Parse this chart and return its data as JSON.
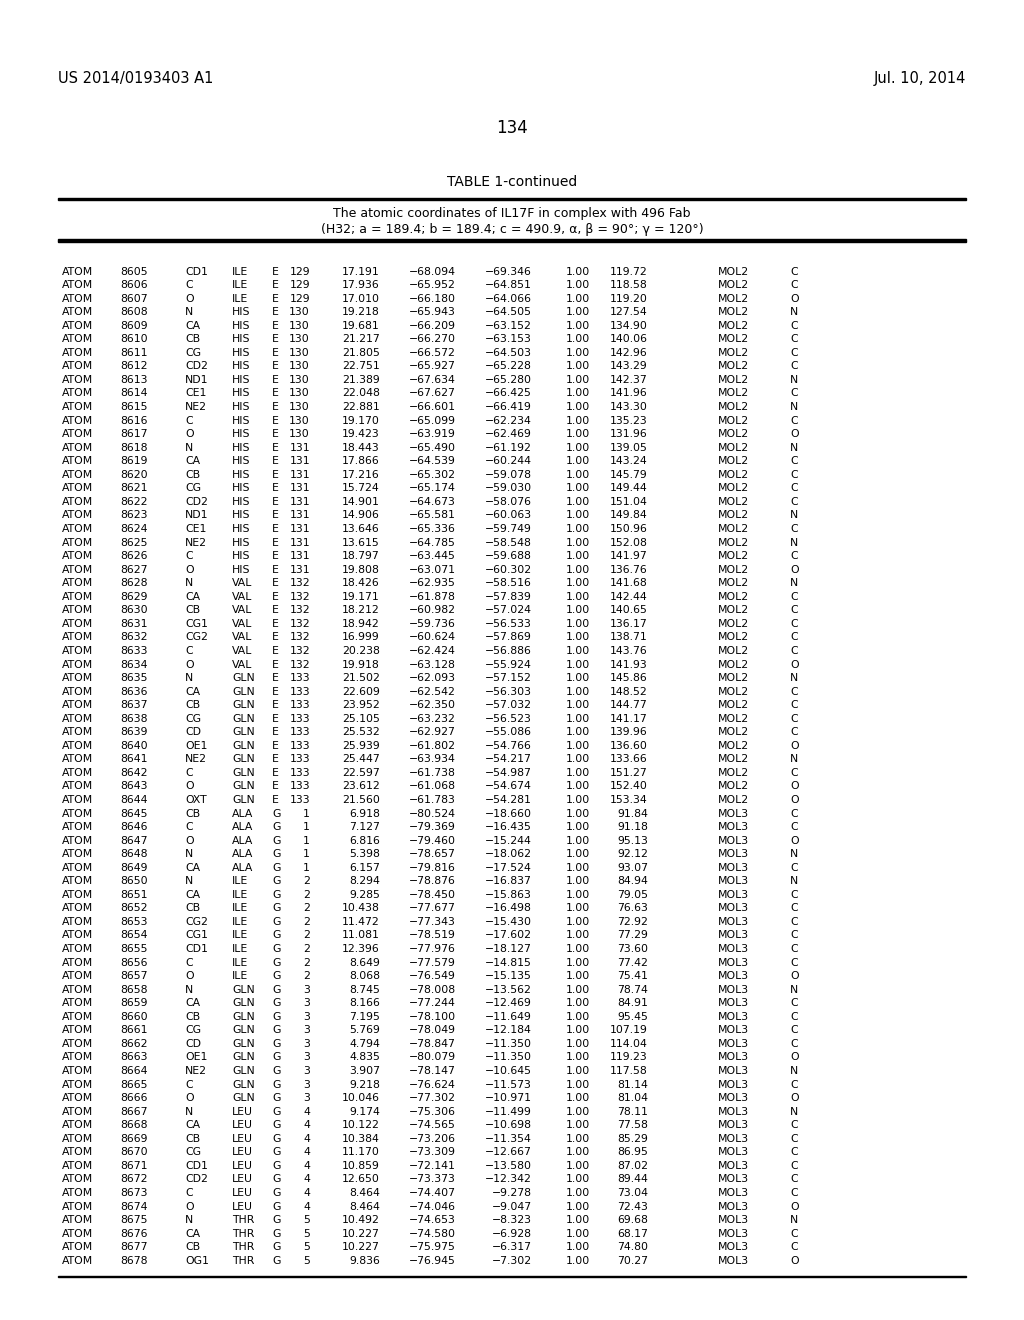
{
  "header_left": "US 2014/0193403 A1",
  "header_right": "Jul. 10, 2014",
  "page_number": "134",
  "table_title": "TABLE 1-continued",
  "table_subtitle1": "The atomic coordinates of IL17F in complex with 496 Fab",
  "table_subtitle2": "(H32; a = 189.4; b = 189.4; c = 490.9, α, β = 90°; γ = 120°)",
  "rows": [
    [
      "ATOM",
      "8605",
      "CD1",
      "ILE",
      "E",
      "129",
      "17.191",
      "−68.094",
      "−69.346",
      "1.00",
      "119.72",
      "MOL2",
      "C"
    ],
    [
      "ATOM",
      "8606",
      "C",
      "ILE",
      "E",
      "129",
      "17.936",
      "−65.952",
      "−64.851",
      "1.00",
      "118.58",
      "MOL2",
      "C"
    ],
    [
      "ATOM",
      "8607",
      "O",
      "ILE",
      "E",
      "129",
      "17.010",
      "−66.180",
      "−64.066",
      "1.00",
      "119.20",
      "MOL2",
      "O"
    ],
    [
      "ATOM",
      "8608",
      "N",
      "HIS",
      "E",
      "130",
      "19.218",
      "−65.943",
      "−64.505",
      "1.00",
      "127.54",
      "MOL2",
      "N"
    ],
    [
      "ATOM",
      "8609",
      "CA",
      "HIS",
      "E",
      "130",
      "19.681",
      "−66.209",
      "−63.152",
      "1.00",
      "134.90",
      "MOL2",
      "C"
    ],
    [
      "ATOM",
      "8610",
      "CB",
      "HIS",
      "E",
      "130",
      "21.217",
      "−66.270",
      "−63.153",
      "1.00",
      "140.06",
      "MOL2",
      "C"
    ],
    [
      "ATOM",
      "8611",
      "CG",
      "HIS",
      "E",
      "130",
      "21.805",
      "−66.572",
      "−64.503",
      "1.00",
      "142.96",
      "MOL2",
      "C"
    ],
    [
      "ATOM",
      "8612",
      "CD2",
      "HIS",
      "E",
      "130",
      "22.751",
      "−65.927",
      "−65.228",
      "1.00",
      "143.29",
      "MOL2",
      "C"
    ],
    [
      "ATOM",
      "8613",
      "ND1",
      "HIS",
      "E",
      "130",
      "21.389",
      "−67.634",
      "−65.280",
      "1.00",
      "142.37",
      "MOL2",
      "N"
    ],
    [
      "ATOM",
      "8614",
      "CE1",
      "HIS",
      "E",
      "130",
      "22.048",
      "−67.627",
      "−66.425",
      "1.00",
      "141.96",
      "MOL2",
      "C"
    ],
    [
      "ATOM",
      "8615",
      "NE2",
      "HIS",
      "E",
      "130",
      "22.881",
      "−66.601",
      "−66.419",
      "1.00",
      "143.30",
      "MOL2",
      "N"
    ],
    [
      "ATOM",
      "8616",
      "C",
      "HIS",
      "E",
      "130",
      "19.170",
      "−65.099",
      "−62.234",
      "1.00",
      "135.23",
      "MOL2",
      "C"
    ],
    [
      "ATOM",
      "8617",
      "O",
      "HIS",
      "E",
      "130",
      "19.423",
      "−63.919",
      "−62.469",
      "1.00",
      "131.96",
      "MOL2",
      "O"
    ],
    [
      "ATOM",
      "8618",
      "N",
      "HIS",
      "E",
      "131",
      "18.443",
      "−65.490",
      "−61.192",
      "1.00",
      "139.05",
      "MOL2",
      "N"
    ],
    [
      "ATOM",
      "8619",
      "CA",
      "HIS",
      "E",
      "131",
      "17.866",
      "−64.539",
      "−60.244",
      "1.00",
      "143.24",
      "MOL2",
      "C"
    ],
    [
      "ATOM",
      "8620",
      "CB",
      "HIS",
      "E",
      "131",
      "17.216",
      "−65.302",
      "−59.078",
      "1.00",
      "145.79",
      "MOL2",
      "C"
    ],
    [
      "ATOM",
      "8621",
      "CG",
      "HIS",
      "E",
      "131",
      "15.724",
      "−65.174",
      "−59.030",
      "1.00",
      "149.44",
      "MOL2",
      "C"
    ],
    [
      "ATOM",
      "8622",
      "CD2",
      "HIS",
      "E",
      "131",
      "14.901",
      "−64.673",
      "−58.076",
      "1.00",
      "151.04",
      "MOL2",
      "C"
    ],
    [
      "ATOM",
      "8623",
      "ND1",
      "HIS",
      "E",
      "131",
      "14.906",
      "−65.581",
      "−60.063",
      "1.00",
      "149.84",
      "MOL2",
      "N"
    ],
    [
      "ATOM",
      "8624",
      "CE1",
      "HIS",
      "E",
      "131",
      "13.646",
      "−65.336",
      "−59.749",
      "1.00",
      "150.96",
      "MOL2",
      "C"
    ],
    [
      "ATOM",
      "8625",
      "NE2",
      "HIS",
      "E",
      "131",
      "13.615",
      "−64.785",
      "−58.548",
      "1.00",
      "152.08",
      "MOL2",
      "N"
    ],
    [
      "ATOM",
      "8626",
      "C",
      "HIS",
      "E",
      "131",
      "18.797",
      "−63.445",
      "−59.688",
      "1.00",
      "141.97",
      "MOL2",
      "C"
    ],
    [
      "ATOM",
      "8627",
      "O",
      "HIS",
      "E",
      "131",
      "19.808",
      "−63.071",
      "−60.302",
      "1.00",
      "136.76",
      "MOL2",
      "O"
    ],
    [
      "ATOM",
      "8628",
      "N",
      "VAL",
      "E",
      "132",
      "18.426",
      "−62.935",
      "−58.516",
      "1.00",
      "141.68",
      "MOL2",
      "N"
    ],
    [
      "ATOM",
      "8629",
      "CA",
      "VAL",
      "E",
      "132",
      "19.171",
      "−61.878",
      "−57.839",
      "1.00",
      "142.44",
      "MOL2",
      "C"
    ],
    [
      "ATOM",
      "8630",
      "CB",
      "VAL",
      "E",
      "132",
      "18.212",
      "−60.982",
      "−57.024",
      "1.00",
      "140.65",
      "MOL2",
      "C"
    ],
    [
      "ATOM",
      "8631",
      "CG1",
      "VAL",
      "E",
      "132",
      "18.942",
      "−59.736",
      "−56.533",
      "1.00",
      "136.17",
      "MOL2",
      "C"
    ],
    [
      "ATOM",
      "8632",
      "CG2",
      "VAL",
      "E",
      "132",
      "16.999",
      "−60.624",
      "−57.869",
      "1.00",
      "138.71",
      "MOL2",
      "C"
    ],
    [
      "ATOM",
      "8633",
      "C",
      "VAL",
      "E",
      "132",
      "20.238",
      "−62.424",
      "−56.886",
      "1.00",
      "143.76",
      "MOL2",
      "C"
    ],
    [
      "ATOM",
      "8634",
      "O",
      "VAL",
      "E",
      "132",
      "19.918",
      "−63.128",
      "−55.924",
      "1.00",
      "141.93",
      "MOL2",
      "O"
    ],
    [
      "ATOM",
      "8635",
      "N",
      "GLN",
      "E",
      "133",
      "21.502",
      "−62.093",
      "−57.152",
      "1.00",
      "145.86",
      "MOL2",
      "N"
    ],
    [
      "ATOM",
      "8636",
      "CA",
      "GLN",
      "E",
      "133",
      "22.609",
      "−62.542",
      "−56.303",
      "1.00",
      "148.52",
      "MOL2",
      "C"
    ],
    [
      "ATOM",
      "8637",
      "CB",
      "GLN",
      "E",
      "133",
      "23.952",
      "−62.350",
      "−57.032",
      "1.00",
      "144.77",
      "MOL2",
      "C"
    ],
    [
      "ATOM",
      "8638",
      "CG",
      "GLN",
      "E",
      "133",
      "25.105",
      "−63.232",
      "−56.523",
      "1.00",
      "141.17",
      "MOL2",
      "C"
    ],
    [
      "ATOM",
      "8639",
      "CD",
      "GLN",
      "E",
      "133",
      "25.532",
      "−62.927",
      "−55.086",
      "1.00",
      "139.96",
      "MOL2",
      "C"
    ],
    [
      "ATOM",
      "8640",
      "OE1",
      "GLN",
      "E",
      "133",
      "25.939",
      "−61.802",
      "−54.766",
      "1.00",
      "136.60",
      "MOL2",
      "O"
    ],
    [
      "ATOM",
      "8641",
      "NE2",
      "GLN",
      "E",
      "133",
      "25.447",
      "−63.934",
      "−54.217",
      "1.00",
      "133.66",
      "MOL2",
      "N"
    ],
    [
      "ATOM",
      "8642",
      "C",
      "GLN",
      "E",
      "133",
      "22.597",
      "−61.738",
      "−54.987",
      "1.00",
      "151.27",
      "MOL2",
      "C"
    ],
    [
      "ATOM",
      "8643",
      "O",
      "GLN",
      "E",
      "133",
      "23.612",
      "−61.068",
      "−54.674",
      "1.00",
      "152.40",
      "MOL2",
      "O"
    ],
    [
      "ATOM",
      "8644",
      "OXT",
      "GLN",
      "E",
      "133",
      "21.560",
      "−61.783",
      "−54.281",
      "1.00",
      "153.34",
      "MOL2",
      "O"
    ],
    [
      "ATOM",
      "8645",
      "CB",
      "ALA",
      "G",
      "1",
      "6.918",
      "−80.524",
      "−18.660",
      "1.00",
      "91.84",
      "MOL3",
      "C"
    ],
    [
      "ATOM",
      "8646",
      "C",
      "ALA",
      "G",
      "1",
      "7.127",
      "−79.369",
      "−16.435",
      "1.00",
      "91.18",
      "MOL3",
      "C"
    ],
    [
      "ATOM",
      "8647",
      "O",
      "ALA",
      "G",
      "1",
      "6.816",
      "−79.460",
      "−15.244",
      "1.00",
      "95.13",
      "MOL3",
      "O"
    ],
    [
      "ATOM",
      "8648",
      "N",
      "ALA",
      "G",
      "1",
      "5.398",
      "−78.657",
      "−18.062",
      "1.00",
      "92.12",
      "MOL3",
      "N"
    ],
    [
      "ATOM",
      "8649",
      "CA",
      "ALA",
      "G",
      "1",
      "6.157",
      "−79.816",
      "−17.524",
      "1.00",
      "93.07",
      "MOL3",
      "C"
    ],
    [
      "ATOM",
      "8650",
      "N",
      "ILE",
      "G",
      "2",
      "8.294",
      "−78.876",
      "−16.837",
      "1.00",
      "84.94",
      "MOL3",
      "N"
    ],
    [
      "ATOM",
      "8651",
      "CA",
      "ILE",
      "G",
      "2",
      "9.285",
      "−78.450",
      "−15.863",
      "1.00",
      "79.05",
      "MOL3",
      "C"
    ],
    [
      "ATOM",
      "8652",
      "CB",
      "ILE",
      "G",
      "2",
      "10.438",
      "−77.677",
      "−16.498",
      "1.00",
      "76.63",
      "MOL3",
      "C"
    ],
    [
      "ATOM",
      "8653",
      "CG2",
      "ILE",
      "G",
      "2",
      "11.472",
      "−77.343",
      "−15.430",
      "1.00",
      "72.92",
      "MOL3",
      "C"
    ],
    [
      "ATOM",
      "8654",
      "CG1",
      "ILE",
      "G",
      "2",
      "11.081",
      "−78.519",
      "−17.602",
      "1.00",
      "77.29",
      "MOL3",
      "C"
    ],
    [
      "ATOM",
      "8655",
      "CD1",
      "ILE",
      "G",
      "2",
      "12.396",
      "−77.976",
      "−18.127",
      "1.00",
      "73.60",
      "MOL3",
      "C"
    ],
    [
      "ATOM",
      "8656",
      "C",
      "ILE",
      "G",
      "2",
      "8.649",
      "−77.579",
      "−14.815",
      "1.00",
      "77.42",
      "MOL3",
      "C"
    ],
    [
      "ATOM",
      "8657",
      "O",
      "ILE",
      "G",
      "2",
      "8.068",
      "−76.549",
      "−15.135",
      "1.00",
      "75.41",
      "MOL3",
      "O"
    ],
    [
      "ATOM",
      "8658",
      "N",
      "GLN",
      "G",
      "3",
      "8.745",
      "−78.008",
      "−13.562",
      "1.00",
      "78.74",
      "MOL3",
      "N"
    ],
    [
      "ATOM",
      "8659",
      "CA",
      "GLN",
      "G",
      "3",
      "8.166",
      "−77.244",
      "−12.469",
      "1.00",
      "84.91",
      "MOL3",
      "C"
    ],
    [
      "ATOM",
      "8660",
      "CB",
      "GLN",
      "G",
      "3",
      "7.195",
      "−78.100",
      "−11.649",
      "1.00",
      "95.45",
      "MOL3",
      "C"
    ],
    [
      "ATOM",
      "8661",
      "CG",
      "GLN",
      "G",
      "3",
      "5.769",
      "−78.049",
      "−12.184",
      "1.00",
      "107.19",
      "MOL3",
      "C"
    ],
    [
      "ATOM",
      "8662",
      "CD",
      "GLN",
      "G",
      "3",
      "4.794",
      "−78.847",
      "−11.350",
      "1.00",
      "114.04",
      "MOL3",
      "C"
    ],
    [
      "ATOM",
      "8663",
      "OE1",
      "GLN",
      "G",
      "3",
      "4.835",
      "−80.079",
      "−11.350",
      "1.00",
      "119.23",
      "MOL3",
      "O"
    ],
    [
      "ATOM",
      "8664",
      "NE2",
      "GLN",
      "G",
      "3",
      "3.907",
      "−78.147",
      "−10.645",
      "1.00",
      "117.58",
      "MOL3",
      "N"
    ],
    [
      "ATOM",
      "8665",
      "C",
      "GLN",
      "G",
      "3",
      "9.218",
      "−76.624",
      "−11.573",
      "1.00",
      "81.14",
      "MOL3",
      "C"
    ],
    [
      "ATOM",
      "8666",
      "O",
      "GLN",
      "G",
      "3",
      "10.046",
      "−77.302",
      "−10.971",
      "1.00",
      "81.04",
      "MOL3",
      "O"
    ],
    [
      "ATOM",
      "8667",
      "N",
      "LEU",
      "G",
      "4",
      "9.174",
      "−75.306",
      "−11.499",
      "1.00",
      "78.11",
      "MOL3",
      "N"
    ],
    [
      "ATOM",
      "8668",
      "CA",
      "LEU",
      "G",
      "4",
      "10.122",
      "−74.565",
      "−10.698",
      "1.00",
      "77.58",
      "MOL3",
      "C"
    ],
    [
      "ATOM",
      "8669",
      "CB",
      "LEU",
      "G",
      "4",
      "10.384",
      "−73.206",
      "−11.354",
      "1.00",
      "85.29",
      "MOL3",
      "C"
    ],
    [
      "ATOM",
      "8670",
      "CG",
      "LEU",
      "G",
      "4",
      "11.170",
      "−73.309",
      "−12.667",
      "1.00",
      "86.95",
      "MOL3",
      "C"
    ],
    [
      "ATOM",
      "8671",
      "CD1",
      "LEU",
      "G",
      "4",
      "10.859",
      "−72.141",
      "−13.580",
      "1.00",
      "87.02",
      "MOL3",
      "C"
    ],
    [
      "ATOM",
      "8672",
      "CD2",
      "LEU",
      "G",
      "4",
      "12.650",
      "−73.373",
      "−12.342",
      "1.00",
      "89.44",
      "MOL3",
      "C"
    ],
    [
      "ATOM",
      "8673",
      "C",
      "LEU",
      "G",
      "4",
      "8.464",
      "−74.407",
      "−9.278",
      "1.00",
      "73.04",
      "MOL3",
      "C"
    ],
    [
      "ATOM",
      "8674",
      "O",
      "LEU",
      "G",
      "4",
      "8.464",
      "−74.046",
      "−9.047",
      "1.00",
      "72.43",
      "MOL3",
      "O"
    ],
    [
      "ATOM",
      "8675",
      "N",
      "THR",
      "G",
      "5",
      "10.492",
      "−74.653",
      "−8.323",
      "1.00",
      "69.68",
      "MOL3",
      "N"
    ],
    [
      "ATOM",
      "8676",
      "CA",
      "THR",
      "G",
      "5",
      "10.227",
      "−74.580",
      "−6.928",
      "1.00",
      "68.17",
      "MOL3",
      "C"
    ],
    [
      "ATOM",
      "8677",
      "CB",
      "THR",
      "G",
      "5",
      "10.227",
      "−75.975",
      "−6.317",
      "1.00",
      "74.80",
      "MOL3",
      "C"
    ],
    [
      "ATOM",
      "8678",
      "OG1",
      "THR",
      "G",
      "5",
      "9.836",
      "−76.945",
      "−7.302",
      "1.00",
      "70.27",
      "MOL3",
      "O"
    ]
  ]
}
